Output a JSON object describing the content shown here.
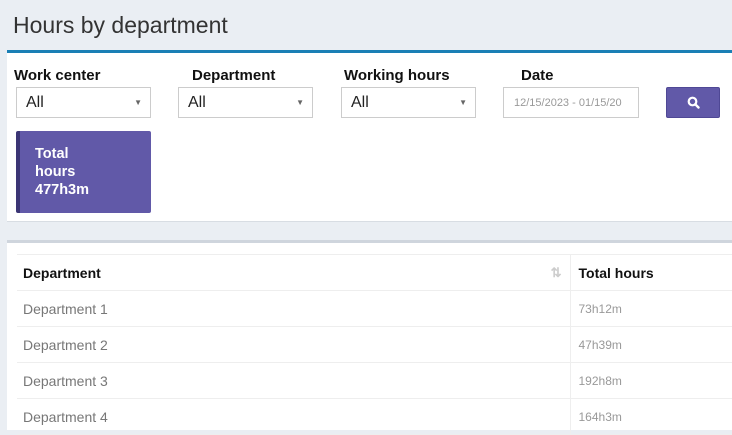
{
  "title": "Hours by department",
  "filters": {
    "work_center": {
      "label": "Work center",
      "value": "All"
    },
    "department": {
      "label": "Department",
      "value": "All"
    },
    "working_hours": {
      "label": "Working hours",
      "value": "All"
    },
    "date": {
      "label": "Date",
      "value": "12/15/2023 - 01/15/20"
    },
    "search_icon": "search-icon"
  },
  "summary": {
    "line1": "Total",
    "line2": "hours",
    "value": "477h3m"
  },
  "table": {
    "headers": [
      "Department",
      "Total hours"
    ],
    "rows": [
      [
        "Department 1",
        "73h12m"
      ],
      [
        "Department 2",
        "47h39m"
      ],
      [
        "Department 3",
        "192h8m"
      ],
      [
        "Department 4",
        "164h3m"
      ]
    ]
  },
  "colors": {
    "accent": "#6159a8",
    "top_border": "#1a7fb5"
  }
}
